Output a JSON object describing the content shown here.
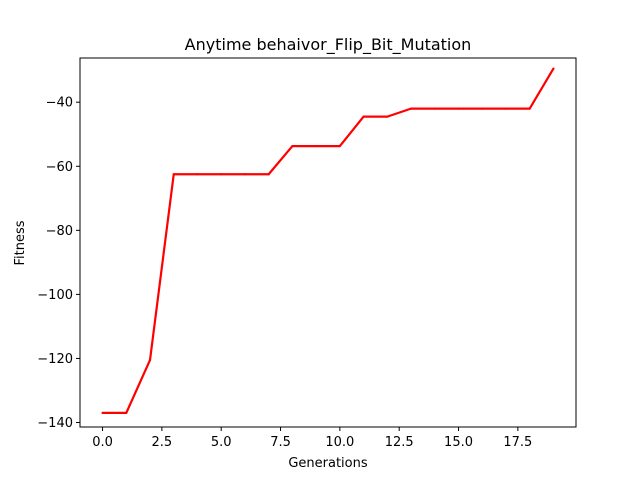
{
  "chart_data": {
    "type": "line",
    "title": "Anytime behaivor_Flip_Bit_Mutation",
    "xlabel": "Generations",
    "ylabel": "Fitness",
    "xlim": [
      -0.95,
      19.95
    ],
    "ylim": [
      -141.4,
      -26.2
    ],
    "xticks": [
      0.0,
      2.5,
      5.0,
      7.5,
      10.0,
      12.5,
      15.0,
      17.5
    ],
    "xtick_labels": [
      "0.0",
      "2.5",
      "5.0",
      "7.5",
      "10.0",
      "12.5",
      "15.0",
      "17.5"
    ],
    "yticks": [
      -140,
      -120,
      -100,
      -80,
      -60,
      -40
    ],
    "ytick_labels": [
      "−140",
      "−120",
      "−100",
      "−80",
      "−60",
      "−40"
    ],
    "grid": false,
    "series": [
      {
        "name": "Fitness",
        "color": "#ff0000",
        "x": [
          0,
          1,
          2,
          3,
          4,
          5,
          6,
          7,
          8,
          9,
          10,
          11,
          12,
          13,
          14,
          15,
          16,
          17,
          18,
          19
        ],
        "values": [
          -137,
          -137,
          -120.5,
          -62.5,
          -62.5,
          -62.5,
          -62.5,
          -62.5,
          -53.7,
          -53.7,
          -53.7,
          -44.5,
          -44.5,
          -42,
          -42,
          -42,
          -42,
          -42,
          -42,
          -29.5
        ]
      }
    ]
  }
}
